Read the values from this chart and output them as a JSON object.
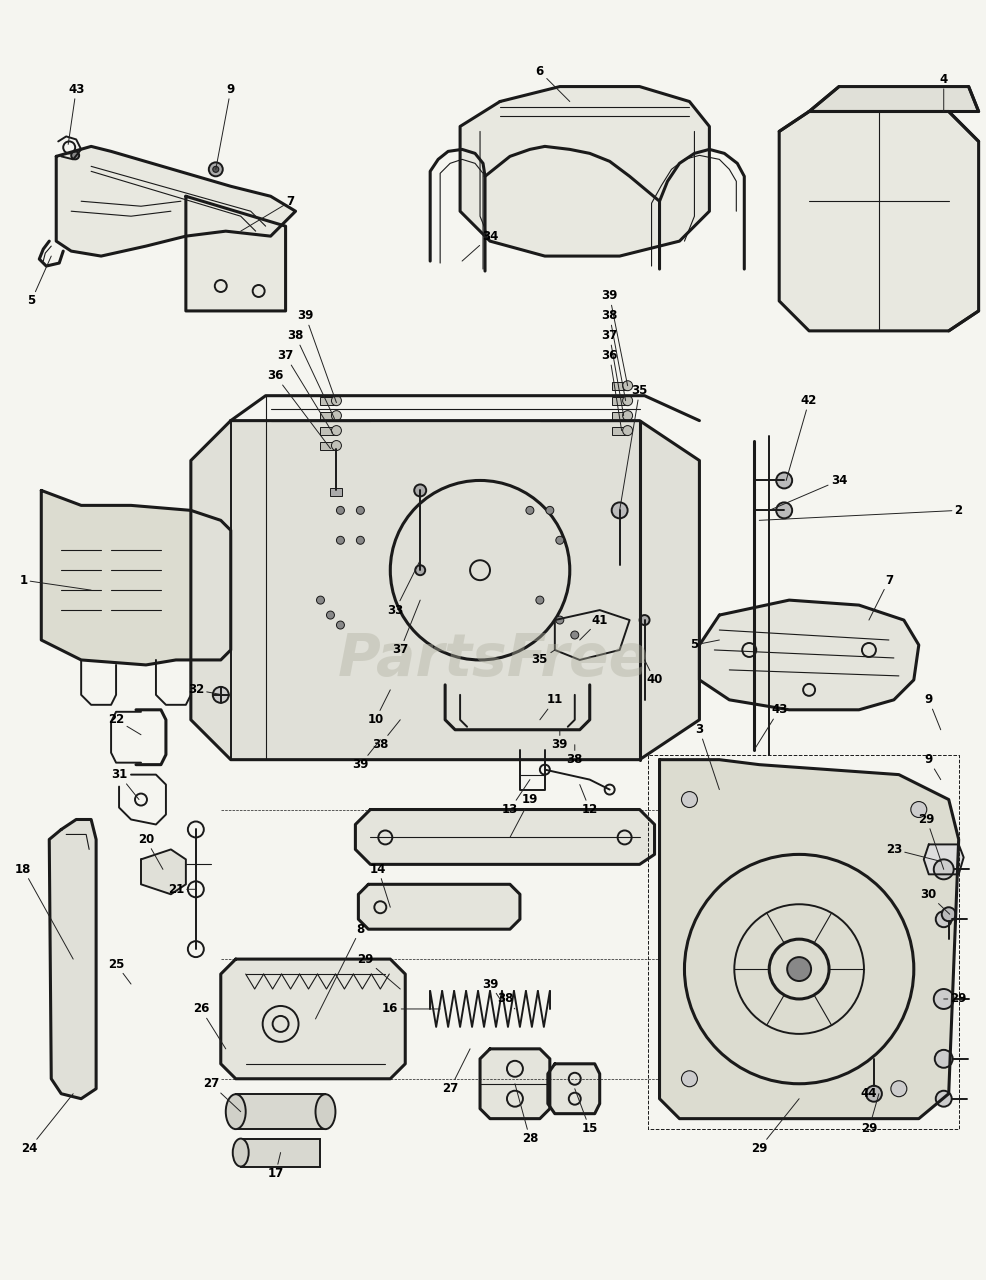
{
  "bg_color": "#f5f5f0",
  "line_color": "#1a1a1a",
  "label_color": "#000000",
  "watermark": "PartsFree",
  "watermark_color": "#b0b0a0",
  "figsize": [
    9.87,
    12.8
  ],
  "dpi": 100,
  "label_fontsize": 8.5,
  "label_fontweight": "bold"
}
